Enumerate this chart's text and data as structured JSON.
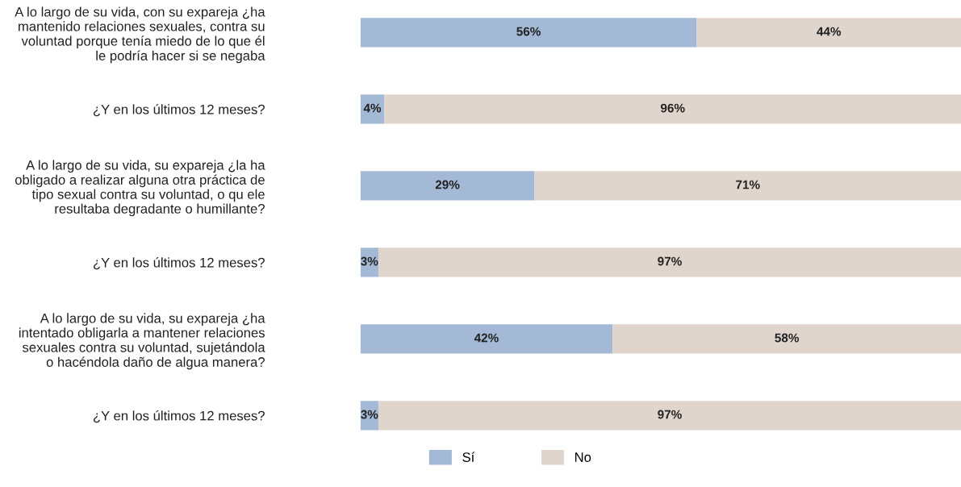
{
  "chart_data": {
    "type": "bar",
    "orientation": "horizontal",
    "stacked": true,
    "categories": [
      "A lo largo de su vida, con su expareja ¿ha\nmantenido relaciones sexuales, contra su\nvoluntad porque tenía miedo de lo que él\nle podría hacer si se negaba",
      "¿Y en los últimos 12 meses?",
      "A lo largo de su vida, su expareja ¿la ha\nobligado a realizar alguna otra práctica de\ntipo sexual contra su voluntad, o qu ele\nresultaba degradante o humillante?",
      "¿Y en los últimos 12 meses?",
      "A lo largo de su vida, su expareja ¿ha\nintentado obligarla a mantener relaciones\nsexuales contra su voluntad, sujetándola\no hacéndola daño de algua manera?",
      "¿Y en los últimos 12 meses?"
    ],
    "series": [
      {
        "name": "Sí",
        "color": "#a3b9d6",
        "values": [
          56,
          4,
          29,
          3,
          42,
          3
        ],
        "value_labels": [
          "56%",
          "4%",
          "29%",
          "3%",
          "42%",
          "3%"
        ]
      },
      {
        "name": "No",
        "color": "#e0d5cc",
        "values": [
          44,
          96,
          71,
          97,
          58,
          97
        ],
        "value_labels": [
          "44%",
          "96%",
          "71%",
          "97%",
          "58%",
          "97%"
        ]
      }
    ],
    "legend": "bottom",
    "grid": false
  }
}
